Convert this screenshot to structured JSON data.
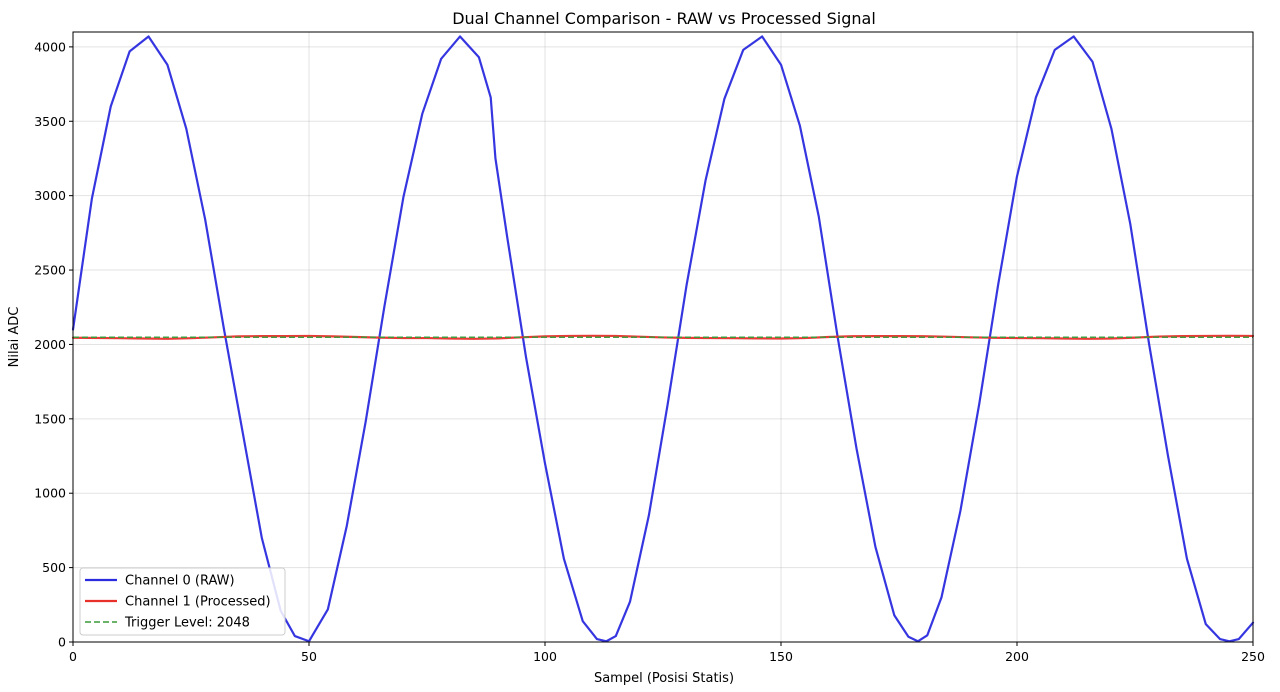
{
  "chart_data": {
    "type": "line",
    "title": "Dual Channel Comparison - RAW vs Processed Signal",
    "xlabel": "Sampel (Posisi Statis)",
    "ylabel": "Nilai ADC",
    "xlim": [
      0,
      250
    ],
    "ylim": [
      0,
      4100
    ],
    "xticks": [
      0,
      50,
      100,
      150,
      200,
      250
    ],
    "yticks": [
      0,
      500,
      1000,
      1500,
      2000,
      2500,
      3000,
      3500,
      4000
    ],
    "grid": true,
    "legend_position": "lower-left",
    "series": [
      {
        "name": "Channel 0 (RAW)",
        "color": "#2b2bdf",
        "style": "solid",
        "x": [
          0,
          4,
          8,
          12,
          16,
          20,
          24,
          28,
          32,
          36,
          40,
          44,
          47,
          50,
          54,
          58,
          62,
          66,
          70,
          74,
          78,
          82,
          86,
          88.5,
          89.5,
          92,
          96,
          100,
          104,
          108,
          111,
          113,
          115,
          118,
          122,
          126,
          130,
          134,
          138,
          142,
          146,
          150,
          154,
          158,
          162,
          166,
          170,
          174,
          177,
          179,
          181,
          184,
          188,
          192,
          196,
          200,
          204,
          208,
          212,
          216,
          220,
          224,
          228,
          232,
          236,
          240,
          243,
          245,
          247,
          250
        ],
        "y": [
          2100,
          2980,
          3600,
          3970,
          4070,
          3880,
          3450,
          2840,
          2100,
          1400,
          700,
          210,
          40,
          5,
          220,
          780,
          1480,
          2260,
          2990,
          3550,
          3920,
          4070,
          3930,
          3660,
          3250,
          2720,
          1910,
          1200,
          560,
          140,
          20,
          5,
          40,
          270,
          850,
          1600,
          2400,
          3100,
          3650,
          3980,
          4070,
          3880,
          3470,
          2860,
          2050,
          1300,
          640,
          180,
          35,
          5,
          45,
          300,
          880,
          1600,
          2400,
          3130,
          3660,
          3980,
          4070,
          3900,
          3450,
          2810,
          2000,
          1250,
          560,
          120,
          20,
          5,
          20,
          130
        ]
      },
      {
        "name": "Channel 1 (Processed)",
        "color": "#e8302a",
        "style": "solid",
        "x": [
          0,
          10,
          15,
          20,
          25,
          30,
          35,
          40,
          45,
          50,
          55,
          60,
          65,
          70,
          75,
          80,
          85,
          90,
          95,
          100,
          105,
          110,
          115,
          120,
          125,
          130,
          135,
          140,
          145,
          150,
          155,
          160,
          165,
          170,
          175,
          180,
          185,
          190,
          195,
          200,
          205,
          210,
          215,
          220,
          225,
          230,
          235,
          240,
          245,
          250
        ],
        "y": [
          2045,
          2042,
          2040,
          2038,
          2042,
          2048,
          2054,
          2056,
          2056,
          2057,
          2054,
          2050,
          2046,
          2043,
          2043,
          2040,
          2038,
          2041,
          2048,
          2054,
          2057,
          2058,
          2057,
          2052,
          2047,
          2044,
          2043,
          2042,
          2041,
          2040,
          2043,
          2050,
          2055,
          2056,
          2056,
          2055,
          2052,
          2048,
          2045,
          2043,
          2042,
          2040,
          2038,
          2040,
          2046,
          2053,
          2056,
          2057,
          2058,
          2057
        ]
      },
      {
        "name": "Trigger Level: 2048",
        "color": "#3a9a3a",
        "style": "dashed",
        "x": [
          0,
          250
        ],
        "y": [
          2048,
          2048
        ]
      }
    ]
  }
}
